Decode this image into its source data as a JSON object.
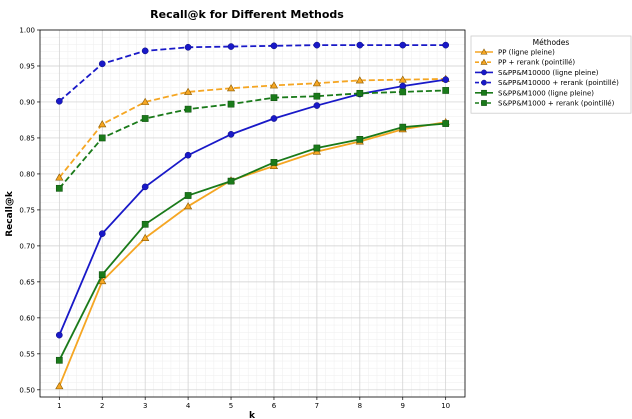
{
  "chart_data": {
    "type": "line",
    "title": "Recall@k for Different Methods",
    "xlabel": "k",
    "ylabel": "Recall@k",
    "x": [
      1,
      2,
      3,
      4,
      5,
      6,
      7,
      8,
      9,
      10
    ],
    "xticks": [
      "1",
      "2",
      "3",
      "4",
      "5",
      "6",
      "7",
      "8",
      "9",
      "10"
    ],
    "xlim": [
      0.55,
      10.45
    ],
    "ylim": [
      0.49,
      1.0
    ],
    "yticks": [
      "0.50",
      "0.55",
      "0.60",
      "0.65",
      "0.70",
      "0.75",
      "0.80",
      "0.85",
      "0.90",
      "0.95",
      "1.00"
    ],
    "grid": true,
    "minor_grid": true,
    "legend": {
      "title": "Méthodes",
      "placement": "outside-right-top"
    },
    "series": [
      {
        "name": "PP (ligne pleine)",
        "color": "#f5a623",
        "marker": "triangle",
        "dashed": false,
        "values": [
          0.505,
          0.651,
          0.711,
          0.755,
          0.791,
          0.811,
          0.831,
          0.845,
          0.862,
          0.872
        ]
      },
      {
        "name": "PP + rerank (pointillé)",
        "color": "#f5a623",
        "marker": "triangle",
        "dashed": true,
        "values": [
          0.795,
          0.869,
          0.9,
          0.914,
          0.919,
          0.923,
          0.926,
          0.93,
          0.931,
          0.932
        ]
      },
      {
        "name": "S&PP&M10000 (ligne pleine)",
        "color": "#1919c8",
        "marker": "circle",
        "dashed": false,
        "values": [
          0.576,
          0.717,
          0.782,
          0.826,
          0.855,
          0.877,
          0.895,
          0.911,
          0.922,
          0.931
        ]
      },
      {
        "name": "S&PP&M10000 + rerank (pointillé)",
        "color": "#1919c8",
        "marker": "circle",
        "dashed": true,
        "values": [
          0.901,
          0.953,
          0.971,
          0.976,
          0.977,
          0.978,
          0.979,
          0.979,
          0.979,
          0.979
        ]
      },
      {
        "name": "S&PP&M1000 (ligne pleine)",
        "color": "#1a7a1a",
        "marker": "square",
        "dashed": false,
        "values": [
          0.541,
          0.66,
          0.73,
          0.77,
          0.79,
          0.816,
          0.836,
          0.848,
          0.865,
          0.87
        ]
      },
      {
        "name": "S&PP&M1000 + rerank (pointillé)",
        "color": "#1a7a1a",
        "marker": "square",
        "dashed": true,
        "values": [
          0.78,
          0.85,
          0.877,
          0.89,
          0.897,
          0.906,
          0.908,
          0.912,
          0.914,
          0.916
        ]
      }
    ]
  }
}
